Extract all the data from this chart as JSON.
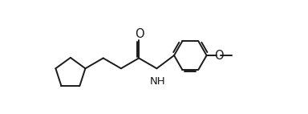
{
  "bg_color": "#ffffff",
  "line_color": "#1a1a1a",
  "line_width": 1.4,
  "font_size": 9.5,
  "xlim": [
    0,
    10.5
  ],
  "ylim": [
    -2.2,
    3.0
  ],
  "figsize": [
    3.84,
    1.42
  ],
  "dpi": 100
}
